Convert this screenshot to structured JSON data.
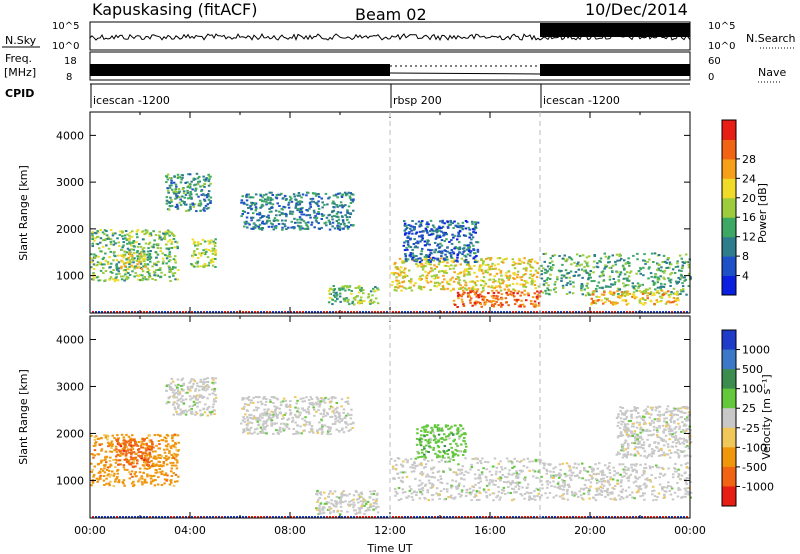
{
  "header": {
    "station": "Kapuskasing (fitACF)",
    "beam": "Beam 02",
    "date": "10/Dec/2014"
  },
  "status_panel": {
    "nsky_label": "N.Sky",
    "nsky_ticks": [
      "10^5",
      "10^0"
    ],
    "nsearch_label": "N.Search",
    "freq_label_1": "Freq.",
    "freq_label_2": "[MHz]",
    "freq_ticks": [
      "18",
      "8"
    ],
    "nave_label": "Nave",
    "nave_ticks": [
      "60",
      "0"
    ],
    "cpid_label": "CPID",
    "cpid_segments": [
      {
        "name": "icescan -1200",
        "start_hour": 0,
        "end_hour": 12
      },
      {
        "name": "rbsp 200",
        "start_hour": 12,
        "end_hour": 18
      },
      {
        "name": "icescan -1200",
        "start_hour": 18,
        "end_hour": 24
      }
    ]
  },
  "chart_data": [
    {
      "type": "heatmap",
      "title": "",
      "xlabel": "",
      "ylabel": "Slant Range [km]",
      "xlim": [
        0,
        24
      ],
      "ylim": [
        200,
        4500
      ],
      "y_ticks": [
        1000,
        2000,
        3000,
        4000
      ],
      "colorbar": {
        "label": "Power [dB]",
        "ticks": [
          "4",
          "8",
          "12",
          "16",
          "20",
          "24",
          "28"
        ],
        "colors": [
          "#0a1fe0",
          "#1e50c8",
          "#2e7d8c",
          "#3ca864",
          "#9ccc3c",
          "#f0dc28",
          "#f5a018",
          "#f06414",
          "#e61e14"
        ]
      },
      "scatter_regions": [
        {
          "start_hour": 0.0,
          "end_hour": 3.5,
          "range_min": 900,
          "range_max": 2000,
          "power_db": 14
        },
        {
          "start_hour": 1.2,
          "end_hour": 2.2,
          "range_min": 1150,
          "range_max": 1500,
          "power_db": 20
        },
        {
          "start_hour": 3.0,
          "end_hour": 4.8,
          "range_min": 2400,
          "range_max": 3200,
          "power_db": 10
        },
        {
          "start_hour": 4.0,
          "end_hour": 5.0,
          "range_min": 1200,
          "range_max": 1800,
          "power_db": 16
        },
        {
          "start_hour": 6.0,
          "end_hour": 10.5,
          "range_min": 2000,
          "range_max": 2800,
          "power_db": 8
        },
        {
          "start_hour": 9.5,
          "end_hour": 11.5,
          "range_min": 400,
          "range_max": 800,
          "power_db": 14
        },
        {
          "start_hour": 12.0,
          "end_hour": 18.0,
          "range_min": 700,
          "range_max": 1400,
          "power_db": 20
        },
        {
          "start_hour": 14.5,
          "end_hour": 18.0,
          "range_min": 350,
          "range_max": 700,
          "power_db": 28
        },
        {
          "start_hour": 12.5,
          "end_hour": 15.5,
          "range_min": 1300,
          "range_max": 2200,
          "power_db": 6
        },
        {
          "start_hour": 18.0,
          "end_hour": 24.0,
          "range_min": 600,
          "range_max": 1500,
          "power_db": 12
        },
        {
          "start_hour": 20.0,
          "end_hour": 23.5,
          "range_min": 400,
          "range_max": 700,
          "power_db": 22
        }
      ]
    },
    {
      "type": "heatmap",
      "title": "",
      "xlabel": "Time UT",
      "ylabel": "Slant Range [km]",
      "xlim": [
        0,
        24
      ],
      "ylim": [
        200,
        4500
      ],
      "x_ticks": [
        "00:00",
        "04:00",
        "08:00",
        "12:00",
        "16:00",
        "20:00",
        "00:00"
      ],
      "y_ticks": [
        1000,
        2000,
        3000,
        4000
      ],
      "colorbar": {
        "label": "Velocity [m s⁻¹]",
        "ticks": [
          "1000",
          "500",
          "100",
          "25",
          "-25",
          "-100",
          "-500",
          "-1000"
        ],
        "colors": [
          "#1e3cc8",
          "#3c78c8",
          "#3c8c50",
          "#64c83c",
          "#c8c8c8",
          "#f0c85a",
          "#f0960a",
          "#f06414",
          "#e61e14"
        ]
      },
      "scatter_regions": [
        {
          "start_hour": 0.0,
          "end_hour": 3.5,
          "range_min": 900,
          "range_max": 2000,
          "velocity": -200
        },
        {
          "start_hour": 1.0,
          "end_hour": 2.5,
          "range_min": 1300,
          "range_max": 1900,
          "velocity": -600
        },
        {
          "start_hour": 3.0,
          "end_hour": 5.0,
          "range_min": 2400,
          "range_max": 3200,
          "velocity": 0
        },
        {
          "start_hour": 6.0,
          "end_hour": 10.5,
          "range_min": 2000,
          "range_max": 2800,
          "velocity": 0
        },
        {
          "start_hour": 9.0,
          "end_hour": 11.5,
          "range_min": 300,
          "range_max": 800,
          "velocity": 50
        },
        {
          "start_hour": 12.0,
          "end_hour": 18.0,
          "range_min": 600,
          "range_max": 1500,
          "velocity": 0
        },
        {
          "start_hour": 13.0,
          "end_hour": 15.0,
          "range_min": 1500,
          "range_max": 2200,
          "velocity": 150
        },
        {
          "start_hour": 18.0,
          "end_hour": 24.0,
          "range_min": 600,
          "range_max": 1400,
          "velocity": 0
        },
        {
          "start_hour": 21.0,
          "end_hour": 24.0,
          "range_min": 1500,
          "range_max": 2600,
          "velocity": 0
        }
      ]
    }
  ]
}
